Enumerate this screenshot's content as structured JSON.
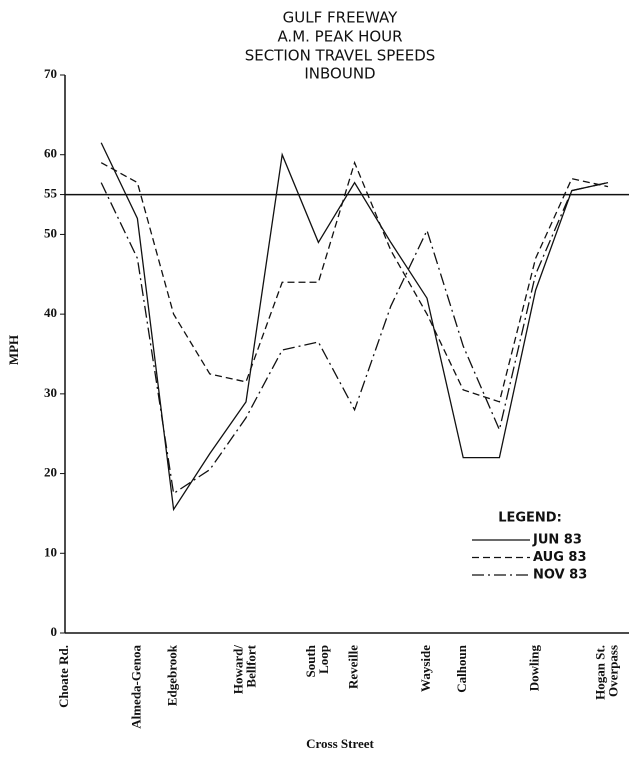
{
  "chart_data": {
    "type": "line",
    "title": [
      "GULF FREEWAY",
      "A.M. PEAK HOUR",
      "SECTION TRAVEL SPEEDS",
      "INBOUND"
    ],
    "y_label": "MPH",
    "x_label": "Cross Street",
    "categories": [
      "Choate Rd.",
      null,
      "Almeda-Genoa",
      "Edgebrook",
      null,
      "Howard/\nBellfort",
      null,
      "South\nLoop",
      "Reveille",
      null,
      "Wayside",
      "Calhoun",
      null,
      "Dowling",
      null,
      "Hogan St.\nOverpass"
    ],
    "ylim": [
      0,
      70
    ],
    "yticks": [
      0,
      10,
      20,
      30,
      40,
      50,
      55,
      60,
      70
    ],
    "reference_line": 55,
    "legend_title": "LEGEND:",
    "legend": "lower right",
    "series": [
      {
        "name": "JUN 83",
        "color": "#111111",
        "dash": "solid",
        "values": [
          null,
          61.5,
          52,
          15.5,
          22.5,
          29,
          60,
          49,
          56.5,
          49,
          42,
          22,
          22,
          43,
          55.5,
          56.5
        ]
      },
      {
        "name": "AUG 83",
        "color": "#111111",
        "dash": "dashed",
        "values": [
          null,
          59,
          56.5,
          40,
          32.5,
          31.5,
          44,
          44,
          59,
          48,
          40,
          30.5,
          29,
          47,
          57,
          56
        ]
      },
      {
        "name": "NOV 83",
        "color": "#111111",
        "dash": "dashdot",
        "values": [
          null,
          56.5,
          47,
          17.5,
          20.5,
          27,
          35.5,
          36.5,
          28,
          41,
          50.5,
          36,
          25.5,
          45,
          55.5,
          56.5
        ]
      }
    ]
  }
}
